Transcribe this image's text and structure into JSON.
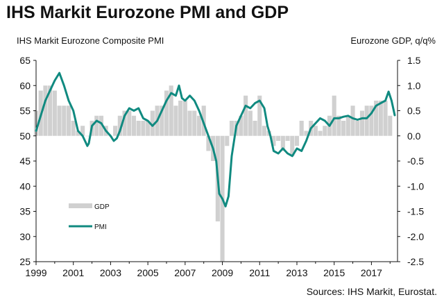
{
  "title": "IHS Markit Eurozone PMI and GDP",
  "left_axis_title": "IHS Markit Eurozone Composite PMI",
  "right_axis_title": "Eurozone GDP, q/q%",
  "source": "Sources: IHS Markit, Eurostat.",
  "colors": {
    "gdp": "#d0d0d0",
    "pmi": "#108a80",
    "axis": "#111111"
  },
  "chart_data": {
    "type": "bar+line",
    "left_ylim": [
      25,
      65
    ],
    "left_ticks": [
      "65",
      "60",
      "55",
      "50",
      "45",
      "40",
      "35",
      "30",
      "25"
    ],
    "right_ylim": [
      -2.5,
      1.5
    ],
    "right_ticks": [
      "1.5",
      "1.0",
      "0.5",
      "0.0",
      "-0.5",
      "-1.0",
      "-1.5",
      "-2.0",
      "-2.5"
    ],
    "xlim": [
      1999,
      2018.4
    ],
    "x_ticks": [
      "1999",
      "2001",
      "2003",
      "2005",
      "2007",
      "2009",
      "2011",
      "2013",
      "2015",
      "2017"
    ],
    "legend": {
      "placement": "lower-left",
      "entries": [
        "GDP",
        "PMI"
      ]
    },
    "series": [
      {
        "name": "GDP",
        "kind": "bar",
        "axis": "right",
        "x": [
          1999.0,
          1999.25,
          1999.5,
          1999.75,
          2000.0,
          2000.25,
          2000.5,
          2000.75,
          2001.0,
          2001.25,
          2001.5,
          2001.75,
          2002.0,
          2002.25,
          2002.5,
          2002.75,
          2003.0,
          2003.25,
          2003.5,
          2003.75,
          2004.0,
          2004.25,
          2004.5,
          2004.75,
          2005.0,
          2005.25,
          2005.5,
          2005.75,
          2006.0,
          2006.25,
          2006.5,
          2006.75,
          2007.0,
          2007.25,
          2007.5,
          2007.75,
          2008.0,
          2008.25,
          2008.5,
          2008.75,
          2009.0,
          2009.25,
          2009.5,
          2009.75,
          2010.0,
          2010.25,
          2010.5,
          2010.75,
          2011.0,
          2011.25,
          2011.5,
          2011.75,
          2012.0,
          2012.25,
          2012.5,
          2012.75,
          2013.0,
          2013.25,
          2013.5,
          2013.75,
          2014.0,
          2014.25,
          2014.5,
          2014.75,
          2015.0,
          2015.25,
          2015.5,
          2015.75,
          2016.0,
          2016.25,
          2016.5,
          2016.75,
          2017.0,
          2017.25,
          2017.5,
          2017.75,
          2018.0
        ],
        "values": [
          0.5,
          0.9,
          1.0,
          1.0,
          0.9,
          0.6,
          0.6,
          0.6,
          0.3,
          0.1,
          0.2,
          0.0,
          0.3,
          0.4,
          0.4,
          0.2,
          0.0,
          0.2,
          0.4,
          0.5,
          0.5,
          0.4,
          0.3,
          0.3,
          0.3,
          0.5,
          0.6,
          0.6,
          0.9,
          1.0,
          0.6,
          0.7,
          0.7,
          0.5,
          0.5,
          0.4,
          0.6,
          -0.3,
          -0.5,
          -1.7,
          -2.5,
          -0.2,
          0.3,
          0.3,
          0.4,
          0.8,
          0.5,
          0.3,
          0.8,
          0.2,
          0.1,
          -0.2,
          -0.1,
          -0.3,
          -0.1,
          -0.4,
          -0.2,
          0.3,
          0.1,
          0.3,
          0.2,
          0.1,
          0.2,
          0.4,
          0.8,
          0.4,
          0.3,
          0.4,
          0.6,
          0.3,
          0.5,
          0.6,
          0.6,
          0.7,
          0.7,
          0.7,
          0.4
        ]
      },
      {
        "name": "PMI",
        "kind": "line",
        "axis": "left",
        "x": [
          1999.0,
          1999.25,
          1999.5,
          1999.75,
          2000.0,
          2000.25,
          2000.5,
          2000.75,
          2001.0,
          2001.25,
          2001.5,
          2001.75,
          2001.83,
          2002.0,
          2002.25,
          2002.5,
          2002.75,
          2003.0,
          2003.17,
          2003.33,
          2003.5,
          2003.75,
          2004.0,
          2004.25,
          2004.5,
          2004.75,
          2005.0,
          2005.25,
          2005.5,
          2005.75,
          2006.0,
          2006.25,
          2006.5,
          2006.67,
          2006.83,
          2007.0,
          2007.25,
          2007.5,
          2007.75,
          2008.0,
          2008.25,
          2008.5,
          2008.67,
          2008.83,
          2009.0,
          2009.17,
          2009.33,
          2009.5,
          2009.75,
          2010.0,
          2010.25,
          2010.5,
          2010.75,
          2011.0,
          2011.25,
          2011.42,
          2011.58,
          2011.75,
          2012.0,
          2012.25,
          2012.5,
          2012.75,
          2013.0,
          2013.25,
          2013.5,
          2013.75,
          2014.0,
          2014.25,
          2014.5,
          2014.75,
          2015.0,
          2015.25,
          2015.5,
          2015.75,
          2016.0,
          2016.25,
          2016.5,
          2016.75,
          2017.0,
          2017.25,
          2017.5,
          2017.75,
          2017.92,
          2018.08,
          2018.25
        ],
        "values": [
          51,
          54,
          57,
          59,
          61,
          62.5,
          60,
          57,
          55,
          51,
          50,
          48,
          48.5,
          52,
          53,
          52.5,
          51,
          50,
          49,
          49.5,
          51,
          54,
          55.5,
          55,
          55.5,
          53.5,
          53,
          52,
          53,
          55,
          57,
          58.5,
          58,
          60,
          57.5,
          57,
          58,
          57,
          55,
          52.5,
          50,
          47.5,
          45,
          38.5,
          37.5,
          36,
          38,
          46,
          52,
          54,
          56,
          55.5,
          56.5,
          57,
          55.5,
          52,
          50,
          47,
          46.5,
          47.5,
          46.5,
          46,
          47.5,
          47,
          49,
          51.5,
          52.5,
          53.5,
          53,
          52,
          53.5,
          53.5,
          53.8,
          54,
          53.5,
          53.2,
          53.5,
          53.5,
          54.5,
          56,
          56.5,
          57,
          58.8,
          57,
          54.1
        ]
      }
    ]
  }
}
